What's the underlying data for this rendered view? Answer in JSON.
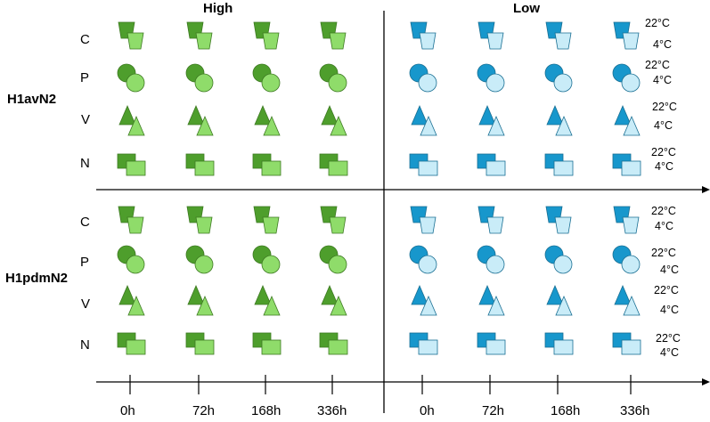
{
  "headers": {
    "high": "High",
    "low": "Low"
  },
  "groups": [
    "H1avN2",
    "H1pdmN2"
  ],
  "rows": [
    "C",
    "P",
    "V",
    "N"
  ],
  "time_points": [
    "0h",
    "72h",
    "168h",
    "336h"
  ],
  "temperatures": {
    "warm": "22°C",
    "cold": "4°C"
  },
  "colors": {
    "high_dark": "#4e9e2c",
    "high_light": "#8fdc6a",
    "low_dark": "#1797cc",
    "low_light": "#c9ecf8",
    "outline_high": "#3e7a22",
    "outline_low": "#1a6f93",
    "axis": "#000000"
  },
  "shapes": {
    "C": "trapezoid-icon",
    "P": "circle-icon",
    "V": "triangle-icon",
    "N": "square-icon"
  }
}
